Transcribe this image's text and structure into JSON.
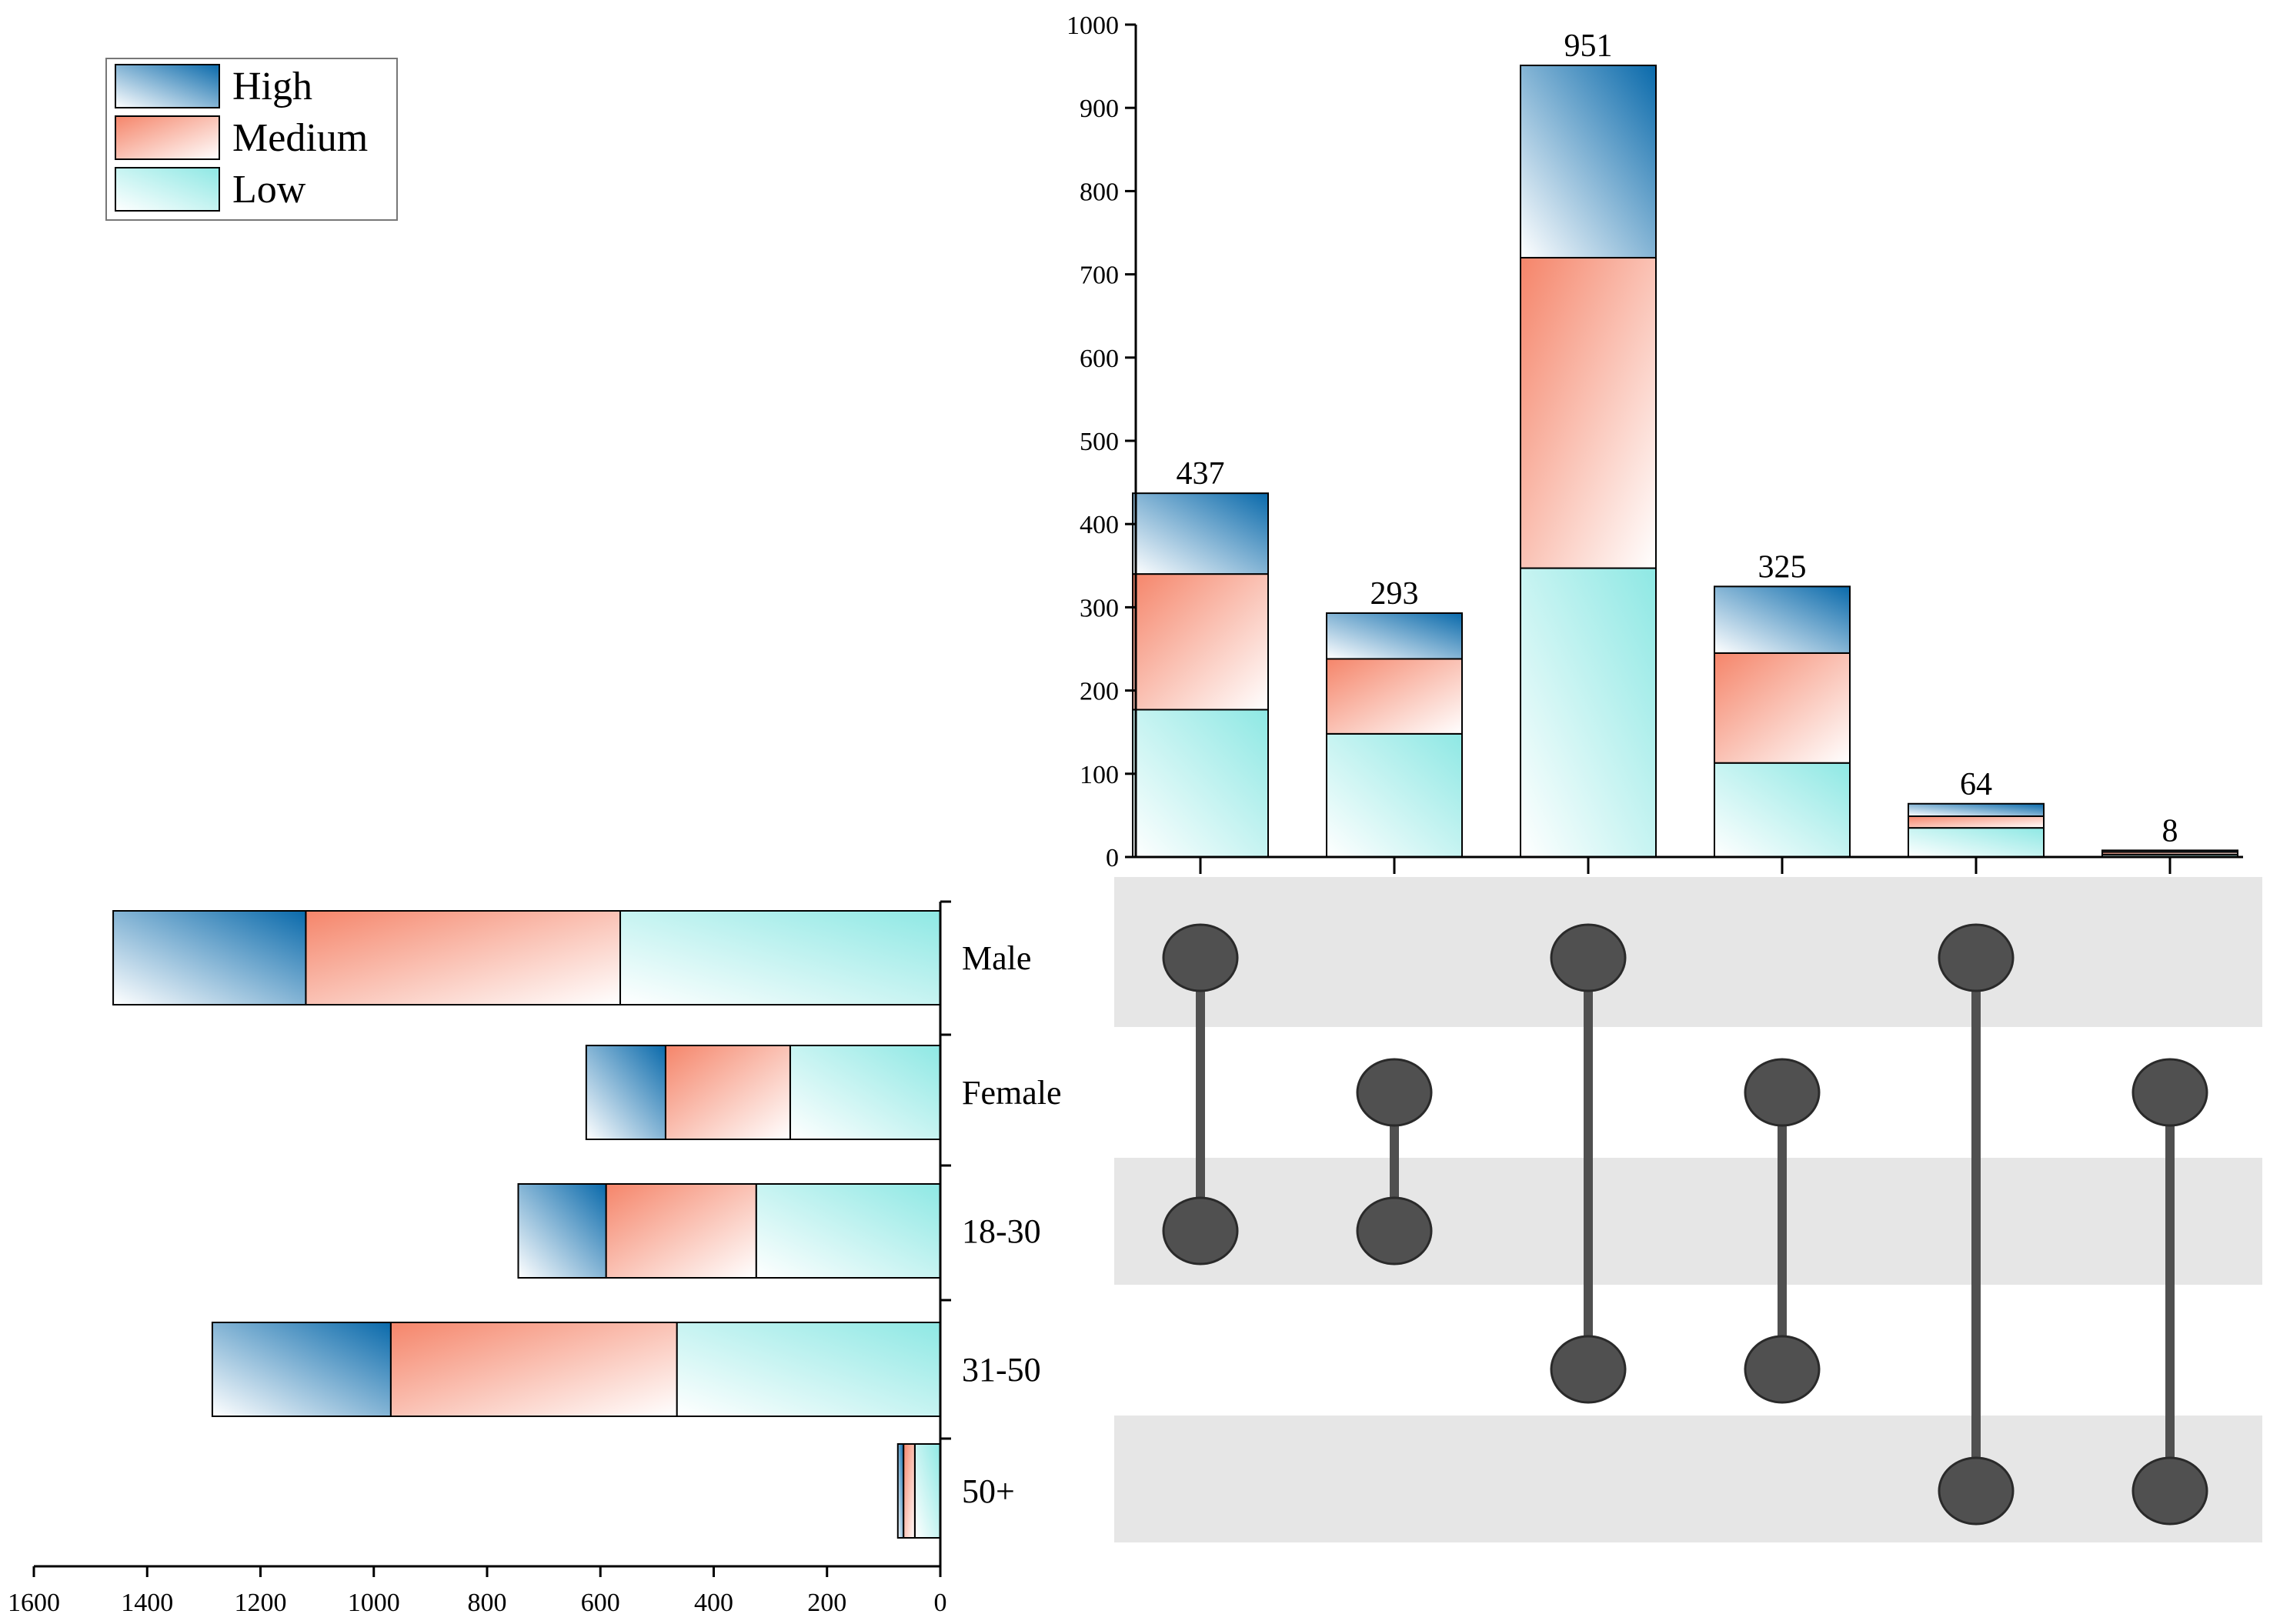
{
  "colors": {
    "high": "#0a6aab",
    "medium": "#f5856a",
    "low": "#8ee8e4",
    "dot": "#505050",
    "stripe": "#e6e6e6",
    "axis": "#000000"
  },
  "chart_data": {
    "type": "upset",
    "legend": {
      "position": "top-left",
      "entries": [
        "High",
        "Medium",
        "Low"
      ]
    },
    "sets": [
      "Male",
      "Female",
      "18-30",
      "31-50",
      "50+"
    ],
    "set_sizes": {
      "series": [
        {
          "name": "High",
          "values": [
            340,
            140,
            155,
            315,
            10
          ]
        },
        {
          "name": "Medium",
          "values": [
            555,
            220,
            265,
            505,
            20
          ]
        },
        {
          "name": "Low",
          "values": [
            565,
            265,
            325,
            465,
            45
          ]
        }
      ],
      "axis_ticks": [
        1600,
        1400,
        1200,
        1000,
        800,
        600,
        400,
        200,
        0
      ],
      "xlim": [
        0,
        1600
      ]
    },
    "intersections": {
      "combos": [
        [
          "Male",
          "18-30"
        ],
        [
          "Female",
          "18-30"
        ],
        [
          "Male",
          "31-50"
        ],
        [
          "Female",
          "31-50"
        ],
        [
          "Male",
          "50+"
        ],
        [
          "Female",
          "50+"
        ]
      ],
      "totals": [
        437,
        293,
        951,
        325,
        64,
        8
      ],
      "series": [
        {
          "name": "High",
          "values": [
            97,
            55,
            231,
            80,
            15,
            2
          ]
        },
        {
          "name": "Medium",
          "values": [
            163,
            90,
            373,
            132,
            14,
            3
          ]
        },
        {
          "name": "Low",
          "values": [
            177,
            148,
            347,
            113,
            35,
            3
          ]
        }
      ],
      "axis_ticks": [
        0,
        100,
        200,
        300,
        400,
        500,
        600,
        700,
        800,
        900,
        1000
      ],
      "ylim": [
        0,
        1000
      ]
    }
  }
}
